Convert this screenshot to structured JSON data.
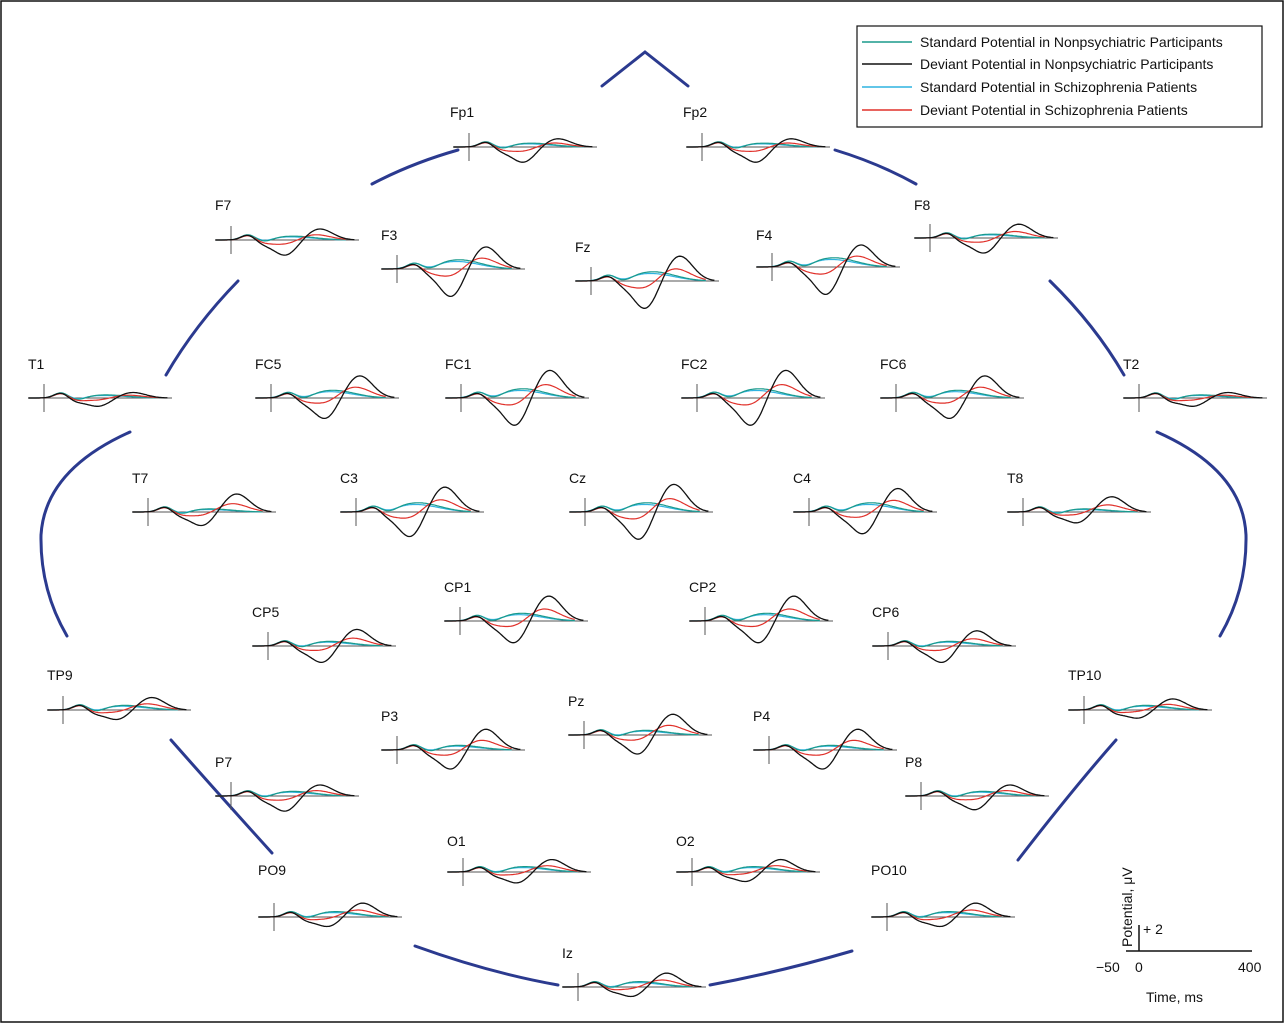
{
  "legend": {
    "entries": [
      {
        "label": "Standard Potential in Nonpsychiatric Participants",
        "color": "#1a9a8c"
      },
      {
        "label": "Deviant Potential in Nonpsychiatric Participants",
        "color": "#111111"
      },
      {
        "label": "Standard Potential in Schizophrenia Patients",
        "color": "#2fb3e0"
      },
      {
        "label": "Deviant Potential in Schizophrenia Patients",
        "color": "#e0302a"
      }
    ]
  },
  "head_outline_color": "#2b3a8f",
  "scale_bar": {
    "ylabel": "Potential, μV",
    "y_tick": "+ 2",
    "x_ticks": [
      "−50",
      "0",
      "400"
    ],
    "xlabel": "Time, ms"
  },
  "electrodes": [
    {
      "name": "Fp1",
      "neg": 0.55,
      "pos": 0.3,
      "sp": 0.25
    },
    {
      "name": "Fp2",
      "neg": 0.55,
      "pos": 0.3,
      "sp": 0.25
    },
    {
      "name": "F7",
      "neg": 0.55,
      "pos": 0.4,
      "sp": 0.25
    },
    {
      "name": "F3",
      "neg": 1.0,
      "pos": 0.8,
      "sp": 0.6
    },
    {
      "name": "Fz",
      "neg": 1.0,
      "pos": 0.9,
      "sp": 0.6
    },
    {
      "name": "F4",
      "neg": 1.0,
      "pos": 0.8,
      "sp": 0.6
    },
    {
      "name": "F8",
      "neg": 0.55,
      "pos": 0.5,
      "sp": 0.25
    },
    {
      "name": "T1",
      "neg": 0.3,
      "pos": 0.2,
      "sp": 0.2
    },
    {
      "name": "FC5",
      "neg": 0.75,
      "pos": 0.8,
      "sp": 0.5
    },
    {
      "name": "FC1",
      "neg": 1.0,
      "pos": 1.0,
      "sp": 0.6
    },
    {
      "name": "FC2",
      "neg": 1.0,
      "pos": 1.0,
      "sp": 0.6
    },
    {
      "name": "FC6",
      "neg": 0.75,
      "pos": 0.8,
      "sp": 0.5
    },
    {
      "name": "T2",
      "neg": 0.3,
      "pos": 0.2,
      "sp": 0.2
    },
    {
      "name": "T7",
      "neg": 0.5,
      "pos": 0.65,
      "sp": 0.2
    },
    {
      "name": "C3",
      "neg": 0.9,
      "pos": 0.9,
      "sp": 0.6
    },
    {
      "name": "Cz",
      "neg": 1.0,
      "pos": 1.0,
      "sp": 0.6
    },
    {
      "name": "C4",
      "neg": 0.8,
      "pos": 0.85,
      "sp": 0.6
    },
    {
      "name": "T8",
      "neg": 0.4,
      "pos": 0.55,
      "sp": 0.2
    },
    {
      "name": "CP1",
      "neg": 0.8,
      "pos": 0.9,
      "sp": 0.5
    },
    {
      "name": "CP2",
      "neg": 0.8,
      "pos": 0.9,
      "sp": 0.5
    },
    {
      "name": "CP5",
      "neg": 0.6,
      "pos": 0.6,
      "sp": 0.3
    },
    {
      "name": "CP6",
      "neg": 0.6,
      "pos": 0.55,
      "sp": 0.3
    },
    {
      "name": "TP9",
      "neg": 0.35,
      "pos": 0.45,
      "sp": 0.3
    },
    {
      "name": "TP10",
      "neg": 0.3,
      "pos": 0.4,
      "sp": 0.3
    },
    {
      "name": "P3",
      "neg": 0.7,
      "pos": 0.75,
      "sp": 0.3
    },
    {
      "name": "Pz",
      "neg": 0.7,
      "pos": 0.75,
      "sp": 0.3
    },
    {
      "name": "P4",
      "neg": 0.7,
      "pos": 0.75,
      "sp": 0.3
    },
    {
      "name": "P7",
      "neg": 0.55,
      "pos": 0.4,
      "sp": 0.3
    },
    {
      "name": "P8",
      "neg": 0.5,
      "pos": 0.4,
      "sp": 0.3
    },
    {
      "name": "O1",
      "neg": 0.4,
      "pos": 0.45,
      "sp": 0.35
    },
    {
      "name": "O2",
      "neg": 0.35,
      "pos": 0.45,
      "sp": 0.35
    },
    {
      "name": "PO9",
      "neg": 0.35,
      "pos": 0.5,
      "sp": 0.35
    },
    {
      "name": "PO10",
      "neg": 0.35,
      "pos": 0.5,
      "sp": 0.35
    },
    {
      "name": "Iz",
      "neg": 0.35,
      "pos": 0.5,
      "sp": 0.35
    }
  ]
}
